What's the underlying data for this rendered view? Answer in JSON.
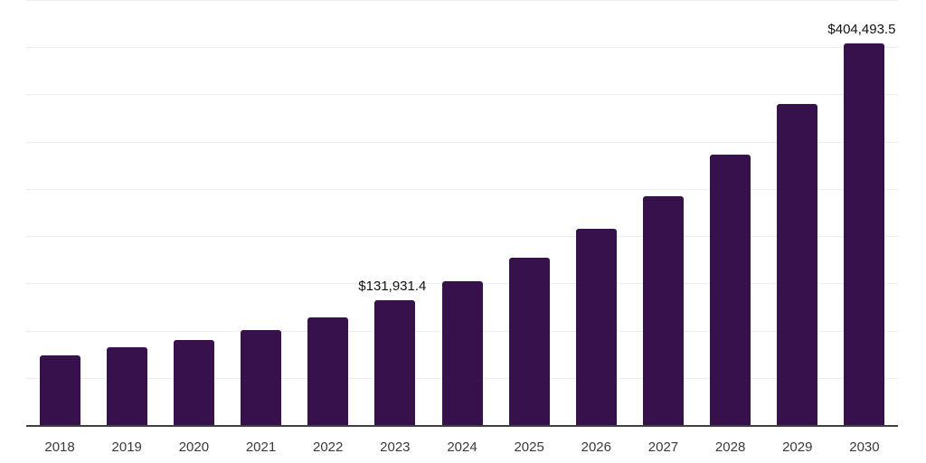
{
  "chart_data": {
    "type": "bar",
    "title": "",
    "xlabel": "",
    "ylabel": "",
    "categories": [
      "2018",
      "2019",
      "2020",
      "2021",
      "2022",
      "2023",
      "2024",
      "2025",
      "2026",
      "2027",
      "2028",
      "2029",
      "2030"
    ],
    "values": [
      73400,
      81900,
      90100,
      100400,
      114000,
      131931.4,
      152400,
      177200,
      207600,
      242100,
      286200,
      340100,
      404493.5
    ],
    "data_labels": {
      "2023": "$131,931.4",
      "2030": "$404,493.5"
    },
    "ylim": [
      0,
      450000
    ],
    "gridline_step": 50000,
    "y_tick_labels_visible": false,
    "grid": "horizontal",
    "legend": "none",
    "colors": {
      "bar": "#36114c",
      "axis_line": "#3f3f3f",
      "gridline": "#ededed",
      "tick_label": "#3a3a3a",
      "data_label": "#111111",
      "background": "#ffffff"
    }
  }
}
